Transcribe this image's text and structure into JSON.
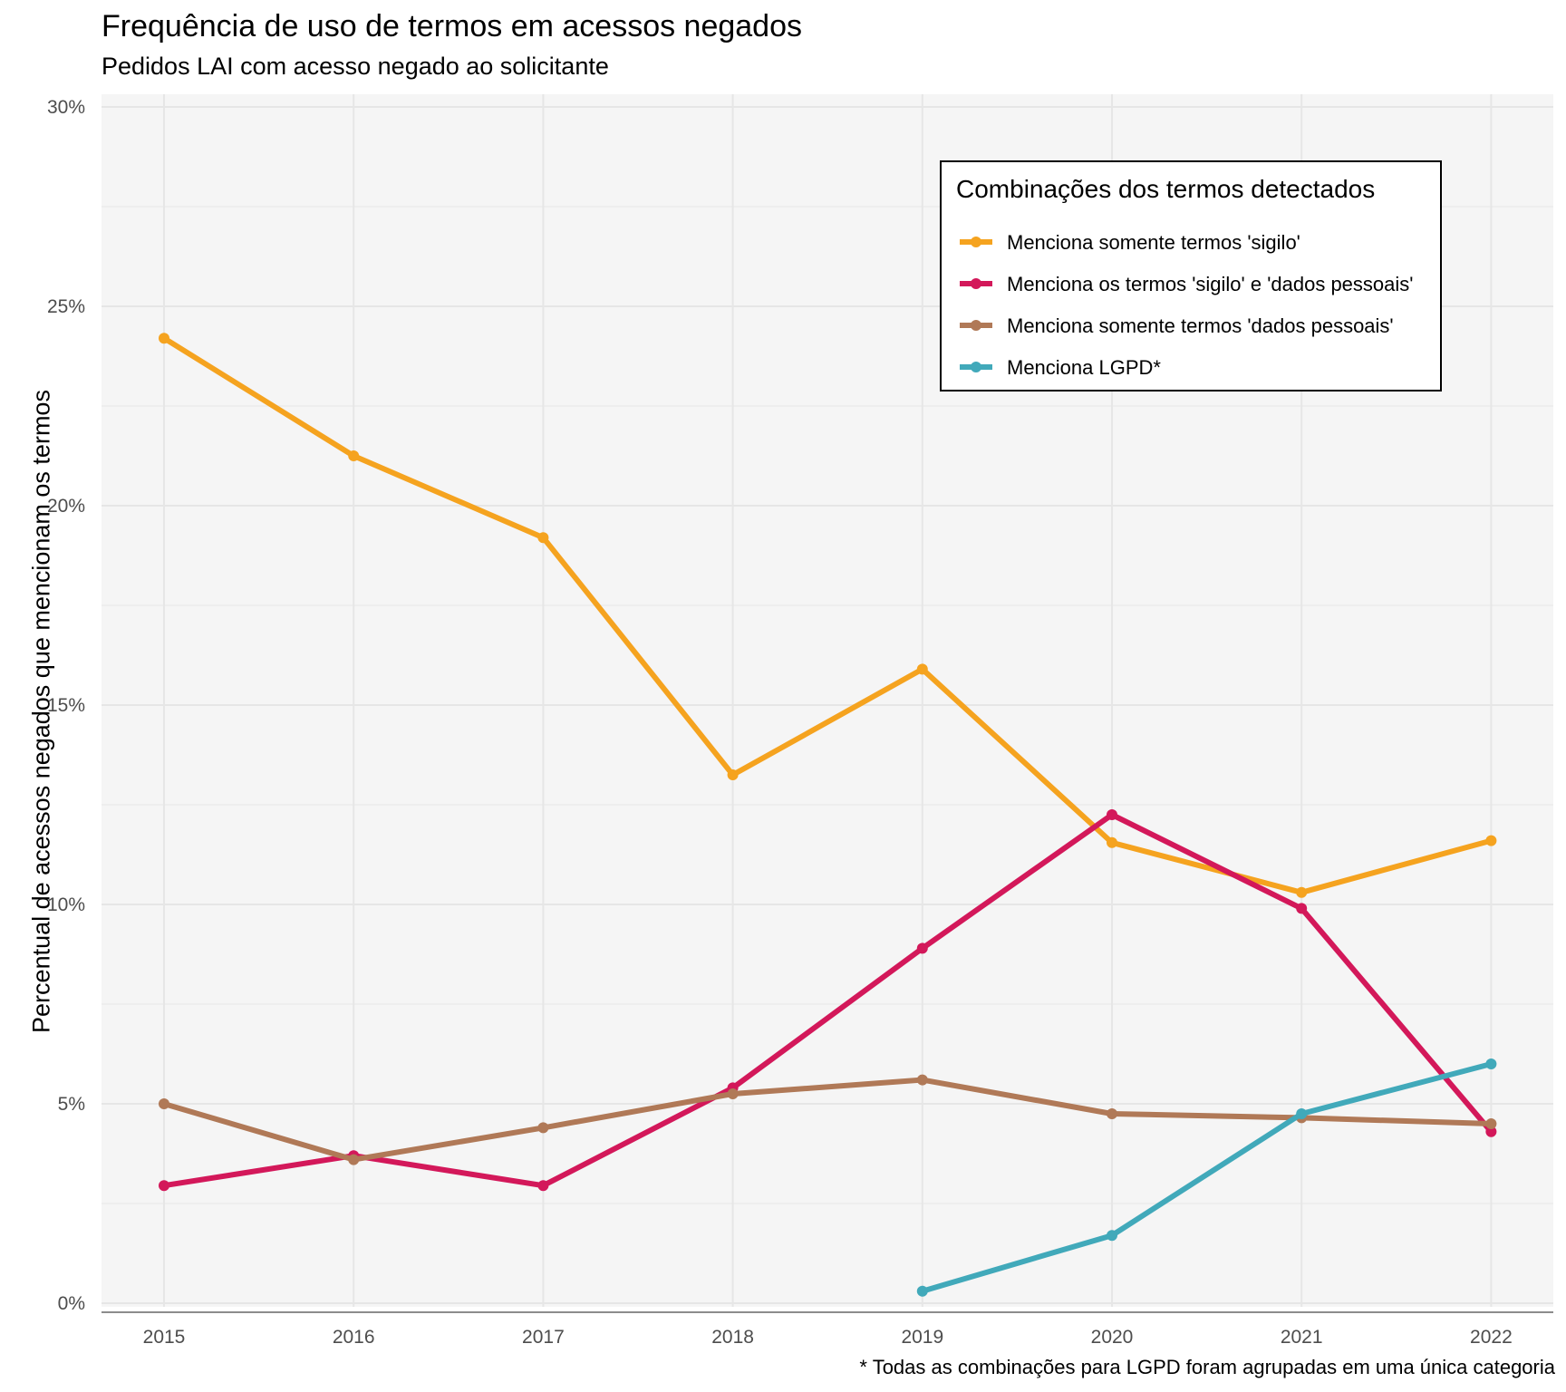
{
  "chart_data": {
    "type": "line",
    "title": "Frequência de uso de termos em acessos negados",
    "subtitle": "Pedidos LAI com acesso negado ao solicitante",
    "caption": "* Todas as combinações para LGPD foram agrupadas em uma única categoria",
    "xlabel": "",
    "ylabel": "Percentual de acessos negados que mencionam os termos",
    "x": [
      2015,
      2016,
      2017,
      2018,
      2019,
      2020,
      2021,
      2022
    ],
    "x_tick_labels": [
      "2015",
      "2016",
      "2017",
      "2018",
      "2019",
      "2020",
      "2021",
      "2022"
    ],
    "ylim": [
      0,
      30
    ],
    "y_ticks": [
      0,
      5,
      10,
      15,
      20,
      25,
      30
    ],
    "y_tick_labels": [
      "0%",
      "5%",
      "10%",
      "15%",
      "20%",
      "25%",
      "30%"
    ],
    "grid": true,
    "legend": {
      "title": "Combinações dos termos detectados",
      "placement": "top-right"
    },
    "series": [
      {
        "name": "Menciona somente termos 'sigilo'",
        "color": "#F5A31F",
        "values": [
          24.2,
          21.25,
          19.2,
          13.25,
          15.9,
          11.55,
          10.3,
          11.6
        ]
      },
      {
        "name": "Menciona os termos 'sigilo' e 'dados pessoais'",
        "color": "#D3185A",
        "values": [
          2.95,
          3.7,
          2.95,
          5.4,
          8.9,
          12.25,
          9.9,
          4.3
        ]
      },
      {
        "name": "Menciona somente termos 'dados pessoais'",
        "color": "#B07957",
        "values": [
          5.0,
          3.6,
          4.4,
          5.25,
          5.6,
          4.75,
          4.65,
          4.5
        ]
      },
      {
        "name": "Menciona LGPD*",
        "color": "#41A9BA",
        "values": [
          null,
          null,
          null,
          null,
          0.3,
          1.7,
          4.75,
          6.0
        ]
      }
    ]
  }
}
